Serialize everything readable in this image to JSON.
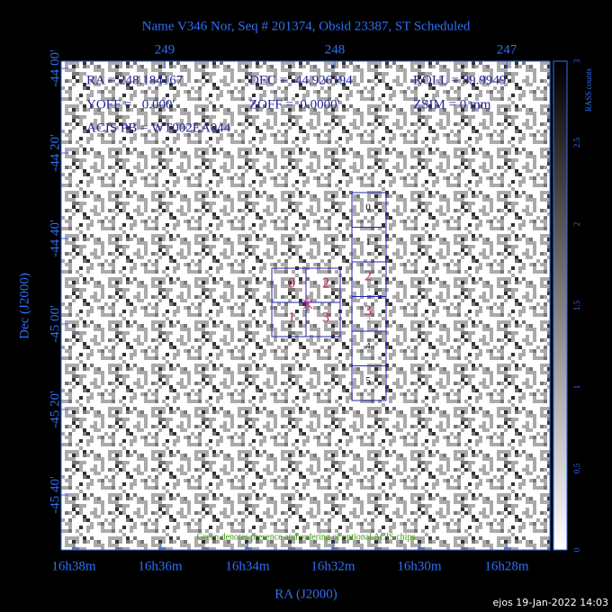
{
  "title": "Name V346 Nor, Seq # 201374, Obsid 23387, ST Scheduled",
  "info_rows": [
    [
      "RA = 248.184167",
      "DEC = -44.926194",
      "ROLL = 89.9949"
    ],
    [
      "YOFF =   0.000'",
      "ZOFF =  0.0000'",
      "ZSIM = 0 mm"
    ],
    [
      "ACIS PB = WT002EA044"
    ]
  ],
  "note": "Green denotes presence and ordering of optional ACIS chips",
  "top_axis": {
    "labels": [
      "249",
      "248",
      "247"
    ]
  },
  "left_axis": {
    "title": "Dec (J2000)",
    "labels": [
      "-44 00'",
      "-44 20'",
      "-44 40'",
      "-45 00'",
      "-45 20'",
      "-45 40'"
    ]
  },
  "bottom_axis": {
    "title": "RA (J2000)",
    "labels": [
      "16h38m",
      "16h36m",
      "16h34m",
      "16h32m",
      "16h30m",
      "16h28m"
    ]
  },
  "colorbar": {
    "title": "RASS counts",
    "labels": [
      "0",
      "0.5",
      "1",
      "1.5",
      "2",
      "2.5",
      "3"
    ]
  },
  "acis_i": {
    "chips": [
      "0",
      "2",
      "1",
      "3"
    ]
  },
  "acis_s": {
    "chips": [
      "0",
      "1",
      "2",
      "3",
      "4",
      "5"
    ],
    "optional_order": [
      "1",
      "2"
    ]
  },
  "footer": "ejos 19-Jan-2022 14:03"
}
